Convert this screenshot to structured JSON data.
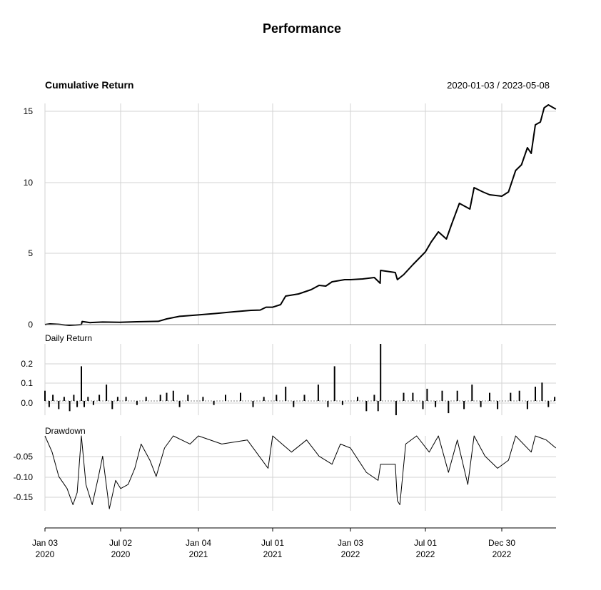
{
  "chart_data": {
    "type": "line",
    "title": "Performance",
    "date_range": "2020-01-03 / 2023-05-08",
    "x_ticks": [
      {
        "date": "2020-01-03",
        "line1": "Jan 03",
        "line2": "2020"
      },
      {
        "date": "2020-07-02",
        "line1": "Jul 02",
        "line2": "2020"
      },
      {
        "date": "2021-01-04",
        "line1": "Jan 04",
        "line2": "2021"
      },
      {
        "date": "2021-07-01",
        "line1": "Jul 01",
        "line2": "2021"
      },
      {
        "date": "2022-01-03",
        "line1": "Jan 03",
        "line2": "2022"
      },
      {
        "date": "2022-07-01",
        "line1": "Jul 01",
        "line2": "2022"
      },
      {
        "date": "2022-12-30",
        "line1": "Dec 30",
        "line2": "2022"
      }
    ],
    "panels": [
      {
        "id": "cumulative",
        "label": "Cumulative Return",
        "type": "line",
        "ylim": [
          0,
          15.5
        ],
        "y_ticks": [
          "0",
          "5",
          "10",
          "15"
        ],
        "series": [
          {
            "x": "2020-01-03",
            "y": 0.0
          },
          {
            "x": "2020-01-15",
            "y": 0.05
          },
          {
            "x": "2020-02-05",
            "y": 0.02
          },
          {
            "x": "2020-03-01",
            "y": -0.05
          },
          {
            "x": "2020-03-30",
            "y": 0.0
          },
          {
            "x": "2020-04-01",
            "y": 0.22
          },
          {
            "x": "2020-04-20",
            "y": 0.14
          },
          {
            "x": "2020-05-20",
            "y": 0.18
          },
          {
            "x": "2020-06-30",
            "y": 0.16
          },
          {
            "x": "2020-08-10",
            "y": 0.2
          },
          {
            "x": "2020-09-30",
            "y": 0.23
          },
          {
            "x": "2020-10-20",
            "y": 0.4
          },
          {
            "x": "2020-11-20",
            "y": 0.58
          },
          {
            "x": "2021-01-04",
            "y": 0.68
          },
          {
            "x": "2021-02-15",
            "y": 0.78
          },
          {
            "x": "2021-03-30",
            "y": 0.9
          },
          {
            "x": "2021-05-10",
            "y": 1.0
          },
          {
            "x": "2021-06-01",
            "y": 1.02
          },
          {
            "x": "2021-06-15",
            "y": 1.22
          },
          {
            "x": "2021-07-01",
            "y": 1.22
          },
          {
            "x": "2021-07-20",
            "y": 1.4
          },
          {
            "x": "2021-08-01",
            "y": 2.0
          },
          {
            "x": "2021-09-01",
            "y": 2.15
          },
          {
            "x": "2021-10-01",
            "y": 2.45
          },
          {
            "x": "2021-10-20",
            "y": 2.75
          },
          {
            "x": "2021-11-05",
            "y": 2.7
          },
          {
            "x": "2021-11-20",
            "y": 3.0
          },
          {
            "x": "2021-12-20",
            "y": 3.15
          },
          {
            "x": "2022-01-03",
            "y": 3.15
          },
          {
            "x": "2022-02-01",
            "y": 3.2
          },
          {
            "x": "2022-03-01",
            "y": 3.3
          },
          {
            "x": "2022-03-15",
            "y": 2.9
          },
          {
            "x": "2022-03-16",
            "y": 3.8
          },
          {
            "x": "2022-04-20",
            "y": 3.65
          },
          {
            "x": "2022-04-25",
            "y": 3.15
          },
          {
            "x": "2022-05-10",
            "y": 3.5
          },
          {
            "x": "2022-06-01",
            "y": 4.2
          },
          {
            "x": "2022-07-01",
            "y": 5.1
          },
          {
            "x": "2022-07-15",
            "y": 5.8
          },
          {
            "x": "2022-08-01",
            "y": 6.5
          },
          {
            "x": "2022-08-20",
            "y": 6.0
          },
          {
            "x": "2022-09-01",
            "y": 7.0
          },
          {
            "x": "2022-09-20",
            "y": 8.5
          },
          {
            "x": "2022-10-15",
            "y": 8.1
          },
          {
            "x": "2022-10-25",
            "y": 9.6
          },
          {
            "x": "2022-11-15",
            "y": 9.3
          },
          {
            "x": "2022-12-01",
            "y": 9.1
          },
          {
            "x": "2022-12-30",
            "y": 9.0
          },
          {
            "x": "2023-01-15",
            "y": 9.3
          },
          {
            "x": "2023-02-01",
            "y": 10.8
          },
          {
            "x": "2023-02-15",
            "y": 11.2
          },
          {
            "x": "2023-03-01",
            "y": 12.4
          },
          {
            "x": "2023-03-10",
            "y": 12.0
          },
          {
            "x": "2023-03-20",
            "y": 14.0
          },
          {
            "x": "2023-04-01",
            "y": 14.2
          },
          {
            "x": "2023-04-10",
            "y": 15.2
          },
          {
            "x": "2023-04-20",
            "y": 15.4
          },
          {
            "x": "2023-05-08",
            "y": 15.1
          }
        ]
      },
      {
        "id": "daily",
        "label": "Daily Return",
        "type": "bar",
        "ylim": [
          -0.07,
          0.28
        ],
        "y_ticks": [
          "0.0",
          "0.1",
          "0.2"
        ],
        "values_note_unused": "",
        "bars": [
          {
            "x": "2020-01-03",
            "y": 0.05
          },
          {
            "x": "2020-01-13",
            "y": -0.03
          },
          {
            "x": "2020-01-22",
            "y": 0.03
          },
          {
            "x": "2020-02-05",
            "y": -0.04
          },
          {
            "x": "2020-02-18",
            "y": 0.02
          },
          {
            "x": "2020-03-02",
            "y": -0.05
          },
          {
            "x": "2020-03-12",
            "y": 0.03
          },
          {
            "x": "2020-03-20",
            "y": -0.03
          },
          {
            "x": "2020-03-30",
            "y": 0.17
          },
          {
            "x": "2020-04-06",
            "y": -0.03
          },
          {
            "x": "2020-04-15",
            "y": 0.02
          },
          {
            "x": "2020-04-28",
            "y": -0.02
          },
          {
            "x": "2020-05-12",
            "y": 0.03
          },
          {
            "x": "2020-05-29",
            "y": 0.08
          },
          {
            "x": "2020-06-12",
            "y": -0.04
          },
          {
            "x": "2020-06-25",
            "y": 0.02
          },
          {
            "x": "2020-07-15",
            "y": 0.02
          },
          {
            "x": "2020-08-10",
            "y": -0.02
          },
          {
            "x": "2020-09-01",
            "y": 0.02
          },
          {
            "x": "2020-10-05",
            "y": 0.03
          },
          {
            "x": "2020-10-20",
            "y": 0.04
          },
          {
            "x": "2020-11-05",
            "y": 0.05
          },
          {
            "x": "2020-11-20",
            "y": -0.03
          },
          {
            "x": "2020-12-10",
            "y": 0.03
          },
          {
            "x": "2021-01-15",
            "y": 0.02
          },
          {
            "x": "2021-02-10",
            "y": -0.02
          },
          {
            "x": "2021-03-10",
            "y": 0.03
          },
          {
            "x": "2021-04-15",
            "y": 0.04
          },
          {
            "x": "2021-05-15",
            "y": -0.03
          },
          {
            "x": "2021-06-10",
            "y": 0.02
          },
          {
            "x": "2021-07-10",
            "y": 0.03
          },
          {
            "x": "2021-08-01",
            "y": 0.07
          },
          {
            "x": "2021-08-20",
            "y": -0.03
          },
          {
            "x": "2021-09-15",
            "y": 0.03
          },
          {
            "x": "2021-10-18",
            "y": 0.08
          },
          {
            "x": "2021-11-10",
            "y": -0.03
          },
          {
            "x": "2021-11-26",
            "y": 0.17
          },
          {
            "x": "2021-12-15",
            "y": -0.02
          },
          {
            "x": "2022-01-20",
            "y": 0.02
          },
          {
            "x": "2022-02-10",
            "y": -0.05
          },
          {
            "x": "2022-03-01",
            "y": 0.03
          },
          {
            "x": "2022-03-10",
            "y": -0.05
          },
          {
            "x": "2022-03-16",
            "y": 0.28
          },
          {
            "x": "2022-04-22",
            "y": -0.07
          },
          {
            "x": "2022-05-10",
            "y": 0.04
          },
          {
            "x": "2022-06-01",
            "y": 0.04
          },
          {
            "x": "2022-06-25",
            "y": -0.04
          },
          {
            "x": "2022-07-05",
            "y": 0.06
          },
          {
            "x": "2022-07-25",
            "y": -0.03
          },
          {
            "x": "2022-08-10",
            "y": 0.05
          },
          {
            "x": "2022-08-25",
            "y": -0.06
          },
          {
            "x": "2022-09-15",
            "y": 0.05
          },
          {
            "x": "2022-10-01",
            "y": -0.04
          },
          {
            "x": "2022-10-20",
            "y": 0.08
          },
          {
            "x": "2022-11-10",
            "y": -0.03
          },
          {
            "x": "2022-12-01",
            "y": 0.04
          },
          {
            "x": "2022-12-20",
            "y": -0.04
          },
          {
            "x": "2023-01-20",
            "y": 0.04
          },
          {
            "x": "2023-02-10",
            "y": 0.05
          },
          {
            "x": "2023-03-01",
            "y": -0.04
          },
          {
            "x": "2023-03-20",
            "y": 0.07
          },
          {
            "x": "2023-04-05",
            "y": 0.09
          },
          {
            "x": "2023-04-20",
            "y": -0.03
          },
          {
            "x": "2023-05-05",
            "y": 0.02
          }
        ]
      },
      {
        "id": "drawdown",
        "label": "Drawdown",
        "type": "line",
        "ylim": [
          -0.185,
          0.0
        ],
        "y_ticks": [
          "-0.05",
          "-0.10",
          "-0.15"
        ],
        "series": [
          {
            "x": "2020-01-03",
            "y": 0.0
          },
          {
            "x": "2020-01-20",
            "y": -0.04
          },
          {
            "x": "2020-02-05",
            "y": -0.1
          },
          {
            "x": "2020-02-25",
            "y": -0.13
          },
          {
            "x": "2020-03-10",
            "y": -0.17
          },
          {
            "x": "2020-03-20",
            "y": -0.14
          },
          {
            "x": "2020-03-30",
            "y": 0.0
          },
          {
            "x": "2020-04-10",
            "y": -0.12
          },
          {
            "x": "2020-04-25",
            "y": -0.17
          },
          {
            "x": "2020-05-10",
            "y": -0.1
          },
          {
            "x": "2020-05-20",
            "y": -0.05
          },
          {
            "x": "2020-06-05",
            "y": -0.18
          },
          {
            "x": "2020-06-20",
            "y": -0.11
          },
          {
            "x": "2020-07-02",
            "y": -0.13
          },
          {
            "x": "2020-07-20",
            "y": -0.12
          },
          {
            "x": "2020-08-05",
            "y": -0.08
          },
          {
            "x": "2020-08-20",
            "y": -0.02
          },
          {
            "x": "2020-09-10",
            "y": -0.06
          },
          {
            "x": "2020-09-25",
            "y": -0.1
          },
          {
            "x": "2020-10-15",
            "y": -0.03
          },
          {
            "x": "2020-11-05",
            "y": 0.0
          },
          {
            "x": "2020-12-15",
            "y": -0.02
          },
          {
            "x": "2021-01-04",
            "y": 0.0
          },
          {
            "x": "2021-03-01",
            "y": -0.02
          },
          {
            "x": "2021-05-01",
            "y": -0.01
          },
          {
            "x": "2021-06-20",
            "y": -0.08
          },
          {
            "x": "2021-07-01",
            "y": 0.0
          },
          {
            "x": "2021-08-15",
            "y": -0.04
          },
          {
            "x": "2021-09-20",
            "y": -0.01
          },
          {
            "x": "2021-10-20",
            "y": -0.05
          },
          {
            "x": "2021-11-20",
            "y": -0.07
          },
          {
            "x": "2021-12-10",
            "y": -0.02
          },
          {
            "x": "2022-01-03",
            "y": -0.03
          },
          {
            "x": "2022-02-10",
            "y": -0.09
          },
          {
            "x": "2022-03-10",
            "y": -0.11
          },
          {
            "x": "2022-03-16",
            "y": -0.07
          },
          {
            "x": "2022-04-20",
            "y": -0.07
          },
          {
            "x": "2022-04-25",
            "y": -0.16
          },
          {
            "x": "2022-05-01",
            "y": -0.17
          },
          {
            "x": "2022-05-15",
            "y": -0.02
          },
          {
            "x": "2022-06-10",
            "y": 0.0
          },
          {
            "x": "2022-07-10",
            "y": -0.04
          },
          {
            "x": "2022-08-01",
            "y": 0.0
          },
          {
            "x": "2022-08-25",
            "y": -0.09
          },
          {
            "x": "2022-09-15",
            "y": -0.01
          },
          {
            "x": "2022-10-10",
            "y": -0.12
          },
          {
            "x": "2022-10-25",
            "y": 0.0
          },
          {
            "x": "2022-11-20",
            "y": -0.05
          },
          {
            "x": "2022-12-20",
            "y": -0.08
          },
          {
            "x": "2023-01-15",
            "y": -0.06
          },
          {
            "x": "2023-02-01",
            "y": 0.0
          },
          {
            "x": "2023-03-10",
            "y": -0.04
          },
          {
            "x": "2023-03-20",
            "y": 0.0
          },
          {
            "x": "2023-04-15",
            "y": -0.01
          },
          {
            "x": "2023-05-08",
            "y": -0.03
          }
        ]
      }
    ],
    "grid": true,
    "colors": {
      "line": "#000000",
      "grid": "#d3d3d3",
      "zero": "#808080"
    }
  }
}
